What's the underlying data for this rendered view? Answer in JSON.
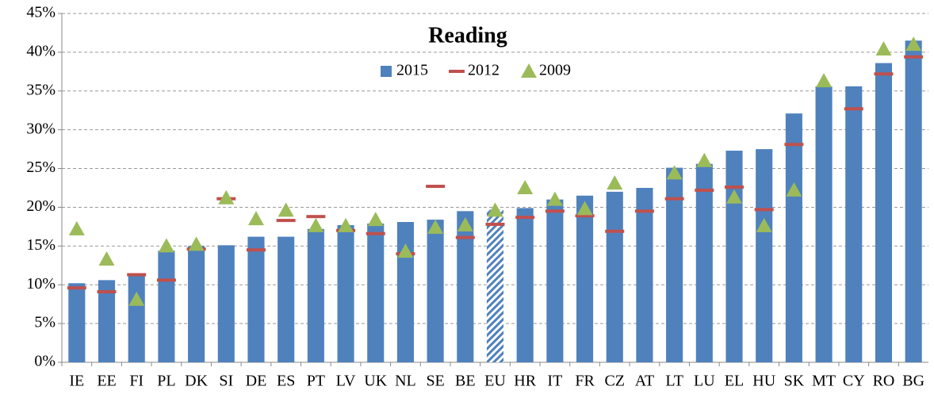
{
  "chart_data": {
    "type": "bar",
    "title": "Reading",
    "categories": [
      "IE",
      "EE",
      "FI",
      "PL",
      "DK",
      "SI",
      "DE",
      "ES",
      "PT",
      "LV",
      "UK",
      "NL",
      "SE",
      "BE",
      "EU",
      "HR",
      "IT",
      "FR",
      "CZ",
      "AT",
      "LT",
      "LU",
      "EL",
      "HU",
      "SK",
      "MT",
      "CY",
      "RO",
      "BG"
    ],
    "series": [
      {
        "name": "2015",
        "kind": "bar",
        "color": "#4f81bd",
        "values": [
          10.2,
          10.6,
          11.1,
          14.4,
          15.0,
          15.1,
          16.2,
          16.2,
          17.2,
          17.7,
          17.9,
          18.1,
          18.4,
          19.5,
          19.7,
          19.9,
          21.0,
          21.5,
          22.0,
          22.5,
          25.1,
          25.6,
          27.3,
          27.5,
          32.1,
          35.6,
          35.6,
          38.6,
          41.5
        ]
      },
      {
        "name": "2012",
        "kind": "dash",
        "color": "#c0504d",
        "values": [
          9.6,
          9.1,
          11.3,
          10.6,
          14.6,
          21.1,
          14.5,
          18.3,
          18.8,
          17.0,
          16.6,
          14.0,
          22.7,
          16.1,
          17.8,
          18.7,
          19.5,
          18.9,
          16.9,
          19.5,
          21.1,
          22.2,
          22.6,
          19.7,
          28.1,
          null,
          32.7,
          37.2,
          39.4
        ]
      },
      {
        "name": "2009",
        "kind": "triangle",
        "color": "#9bbb59",
        "values": [
          17.2,
          13.3,
          8.1,
          15.0,
          15.2,
          21.2,
          18.5,
          19.6,
          17.6,
          17.6,
          18.4,
          14.3,
          17.4,
          17.7,
          19.6,
          22.5,
          21.0,
          19.8,
          23.1,
          null,
          24.4,
          26.0,
          21.3,
          17.6,
          22.2,
          36.3,
          null,
          40.4,
          41.0
        ]
      }
    ],
    "hatched_bar": 14,
    "ylim": [
      0,
      45
    ],
    "yticks": [
      {
        "value": 0,
        "label": "0%"
      },
      {
        "value": 5,
        "label": "5%"
      },
      {
        "value": 10,
        "label": "10%"
      },
      {
        "value": 15,
        "label": "15%"
      },
      {
        "value": 20,
        "label": "20%"
      },
      {
        "value": 25,
        "label": "25%"
      },
      {
        "value": 30,
        "label": "30%"
      },
      {
        "value": 35,
        "label": "35%"
      },
      {
        "value": 40,
        "label": "40%"
      },
      {
        "value": 45,
        "label": "45%"
      }
    ],
    "grid": true
  }
}
